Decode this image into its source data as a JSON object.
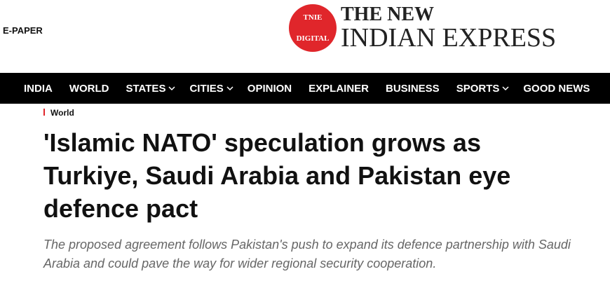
{
  "header": {
    "epaper": "E-PAPER",
    "logo_badge_top": "TNIE",
    "logo_badge_bottom": "DIGITAL",
    "logo_line1": "THE NEW",
    "logo_line2": "INDIAN EXPRESS"
  },
  "nav": [
    "INDIA",
    "WORLD",
    "STATES",
    "CITIES",
    "OPINION",
    "EXPLAINER",
    "BUSINESS",
    "SPORTS",
    "GOOD NEWS"
  ],
  "article": {
    "section": "World",
    "headline": "'Islamic NATO' speculation grows as Turkiye, Saudi Arabia and Pakistan eye defence pact",
    "summary": "The proposed agreement follows Pakistan's push to expand its defence partnership with Saudi Arabia and could pave the way for wider regional security cooperation."
  }
}
